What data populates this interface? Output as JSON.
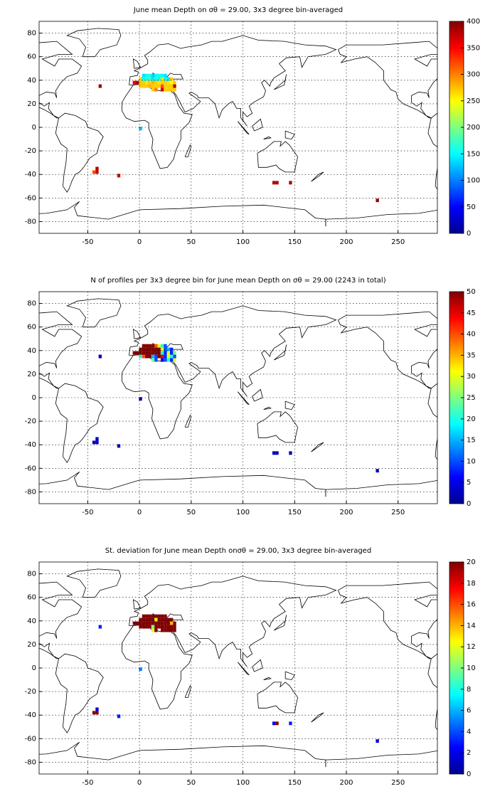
{
  "chart_data": [
    {
      "type": "heatmap",
      "title": "June mean Depth on σθ = 29.00, 3x3 degree bin-averaged",
      "colormap": "jet",
      "grid": true,
      "xlim": [
        -97,
        288
      ],
      "ylim": [
        -90,
        90
      ],
      "xticks": [
        -50,
        0,
        50,
        100,
        150,
        200,
        250
      ],
      "yticks": [
        -80,
        -60,
        -40,
        -20,
        0,
        20,
        40,
        60,
        80
      ],
      "clim": [
        0,
        400
      ],
      "cticks": [
        0,
        50,
        100,
        150,
        200,
        250,
        300,
        350,
        400
      ],
      "x": [
        -38,
        1,
        -44,
        -41,
        -41,
        -20,
        130,
        133,
        146,
        230,
        4,
        7,
        10,
        13,
        16,
        19,
        22,
        25,
        1,
        4,
        7,
        10,
        13,
        16,
        19,
        22,
        25,
        28,
        31,
        -5,
        -2,
        1,
        4,
        7,
        10,
        13,
        16,
        19,
        22,
        25,
        28,
        31,
        34,
        1,
        4,
        7,
        10,
        13,
        16,
        19,
        22,
        25,
        28,
        31,
        34,
        13,
        16,
        22,
        25,
        28,
        31,
        34
      ],
      "y": [
        35,
        -1,
        -38,
        -38,
        -35,
        -41,
        -47,
        -47,
        -47,
        -62,
        44,
        44,
        44,
        44,
        44,
        44,
        44,
        44,
        41,
        41,
        41,
        41,
        41,
        41,
        41,
        41,
        41,
        41,
        41,
        38,
        38,
        38,
        38,
        38,
        38,
        38,
        38,
        38,
        38,
        38,
        38,
        38,
        38,
        35,
        35,
        35,
        35,
        35,
        35,
        35,
        35,
        35,
        35,
        35,
        35,
        32,
        32,
        32,
        32,
        32,
        32,
        32
      ],
      "values": [
        390,
        120,
        320,
        370,
        380,
        370,
        380,
        380,
        380,
        390,
        140,
        150,
        160,
        130,
        150,
        160,
        150,
        140,
        270,
        150,
        160,
        170,
        140,
        160,
        150,
        260,
        150,
        140,
        270,
        360,
        380,
        270,
        270,
        260,
        270,
        280,
        270,
        260,
        270,
        270,
        260,
        250,
        270,
        270,
        270,
        270,
        280,
        270,
        270,
        270,
        320,
        270,
        270,
        270,
        380,
        270,
        300,
        370,
        270,
        270,
        270,
        270
      ]
    },
    {
      "type": "heatmap",
      "title": "N of profiles per 3x3 degree bin for June mean Depth on σθ = 29.00 (2243 in total)",
      "colormap": "jet",
      "grid": true,
      "xlim": [
        -97,
        288
      ],
      "ylim": [
        -90,
        90
      ],
      "xticks": [
        -50,
        0,
        50,
        100,
        150,
        200,
        250
      ],
      "yticks": [
        -80,
        -60,
        -40,
        -20,
        0,
        20,
        40,
        60,
        80
      ],
      "clim": [
        0,
        50
      ],
      "cticks": [
        0,
        5,
        10,
        15,
        20,
        25,
        30,
        35,
        40,
        45,
        50
      ],
      "x": [
        -38,
        1,
        -44,
        -41,
        -41,
        -20,
        130,
        133,
        146,
        230,
        4,
        7,
        10,
        13,
        16,
        19,
        22,
        25,
        1,
        4,
        7,
        10,
        13,
        16,
        19,
        22,
        25,
        28,
        31,
        -5,
        -2,
        1,
        4,
        7,
        10,
        13,
        16,
        19,
        22,
        25,
        28,
        31,
        34,
        1,
        4,
        7,
        10,
        13,
        16,
        19,
        22,
        25,
        28,
        31,
        34,
        13,
        16,
        22,
        25,
        28,
        31,
        34
      ],
      "y": [
        35,
        -1,
        -38,
        -38,
        -35,
        -41,
        -47,
        -47,
        -47,
        -62,
        44,
        44,
        44,
        44,
        44,
        44,
        44,
        44,
        41,
        41,
        41,
        41,
        41,
        41,
        41,
        41,
        41,
        41,
        41,
        38,
        38,
        38,
        38,
        38,
        38,
        38,
        38,
        38,
        38,
        38,
        38,
        38,
        38,
        35,
        35,
        35,
        35,
        35,
        35,
        35,
        35,
        35,
        35,
        35,
        35,
        32,
        32,
        32,
        32,
        32,
        32,
        32
      ],
      "values": [
        3,
        3,
        3,
        3,
        3,
        3,
        3,
        3,
        3,
        3,
        50,
        50,
        50,
        50,
        40,
        30,
        20,
        10,
        50,
        50,
        50,
        50,
        50,
        50,
        50,
        30,
        10,
        15,
        8,
        50,
        50,
        50,
        50,
        50,
        50,
        50,
        50,
        50,
        20,
        8,
        30,
        8,
        25,
        20,
        40,
        50,
        50,
        15,
        10,
        50,
        45,
        8,
        30,
        20,
        10,
        25,
        10,
        5,
        10,
        20,
        8,
        30
      ]
    },
    {
      "type": "heatmap",
      "title": "St. deviation for June mean Depth onσθ = 29.00, 3x3 degree bin-averaged",
      "colormap": "jet",
      "grid": true,
      "xlim": [
        -97,
        288
      ],
      "ylim": [
        -90,
        90
      ],
      "xticks": [
        -50,
        0,
        50,
        100,
        150,
        200,
        250
      ],
      "yticks": [
        -80,
        -60,
        -40,
        -20,
        0,
        20,
        40,
        60,
        80
      ],
      "clim": [
        0,
        20
      ],
      "cticks": [
        0,
        2,
        4,
        6,
        8,
        10,
        12,
        14,
        16,
        18,
        20
      ],
      "x": [
        -38,
        1,
        -44,
        -41,
        -41,
        -20,
        130,
        133,
        146,
        230,
        4,
        7,
        10,
        13,
        16,
        19,
        22,
        25,
        1,
        4,
        7,
        10,
        13,
        16,
        19,
        22,
        25,
        28,
        31,
        -5,
        -2,
        1,
        4,
        7,
        10,
        13,
        16,
        19,
        22,
        25,
        28,
        31,
        34,
        1,
        4,
        7,
        10,
        13,
        16,
        19,
        22,
        25,
        28,
        31,
        34,
        13,
        16,
        22,
        25,
        28,
        31,
        34
      ],
      "y": [
        35,
        -1,
        -38,
        -38,
        -35,
        -41,
        -47,
        -47,
        -47,
        -62,
        44,
        44,
        44,
        44,
        44,
        44,
        44,
        44,
        41,
        41,
        41,
        41,
        41,
        41,
        41,
        41,
        41,
        41,
        41,
        38,
        38,
        38,
        38,
        38,
        38,
        38,
        38,
        38,
        38,
        38,
        38,
        38,
        38,
        35,
        35,
        35,
        35,
        35,
        35,
        35,
        35,
        35,
        35,
        35,
        35,
        32,
        32,
        32,
        32,
        32,
        32,
        32
      ],
      "values": [
        3,
        5,
        20,
        20,
        2,
        3,
        2,
        20,
        3,
        2,
        20,
        20,
        20,
        20,
        20,
        20,
        20,
        20,
        20,
        20,
        20,
        20,
        20,
        12,
        20,
        20,
        20,
        20,
        20,
        20,
        20,
        20,
        20,
        20,
        20,
        20,
        20,
        20,
        20,
        20,
        20,
        14,
        20,
        20,
        20,
        20,
        20,
        10,
        20,
        20,
        20,
        20,
        20,
        20,
        20,
        12,
        20,
        20,
        20,
        20,
        20,
        20
      ]
    }
  ]
}
